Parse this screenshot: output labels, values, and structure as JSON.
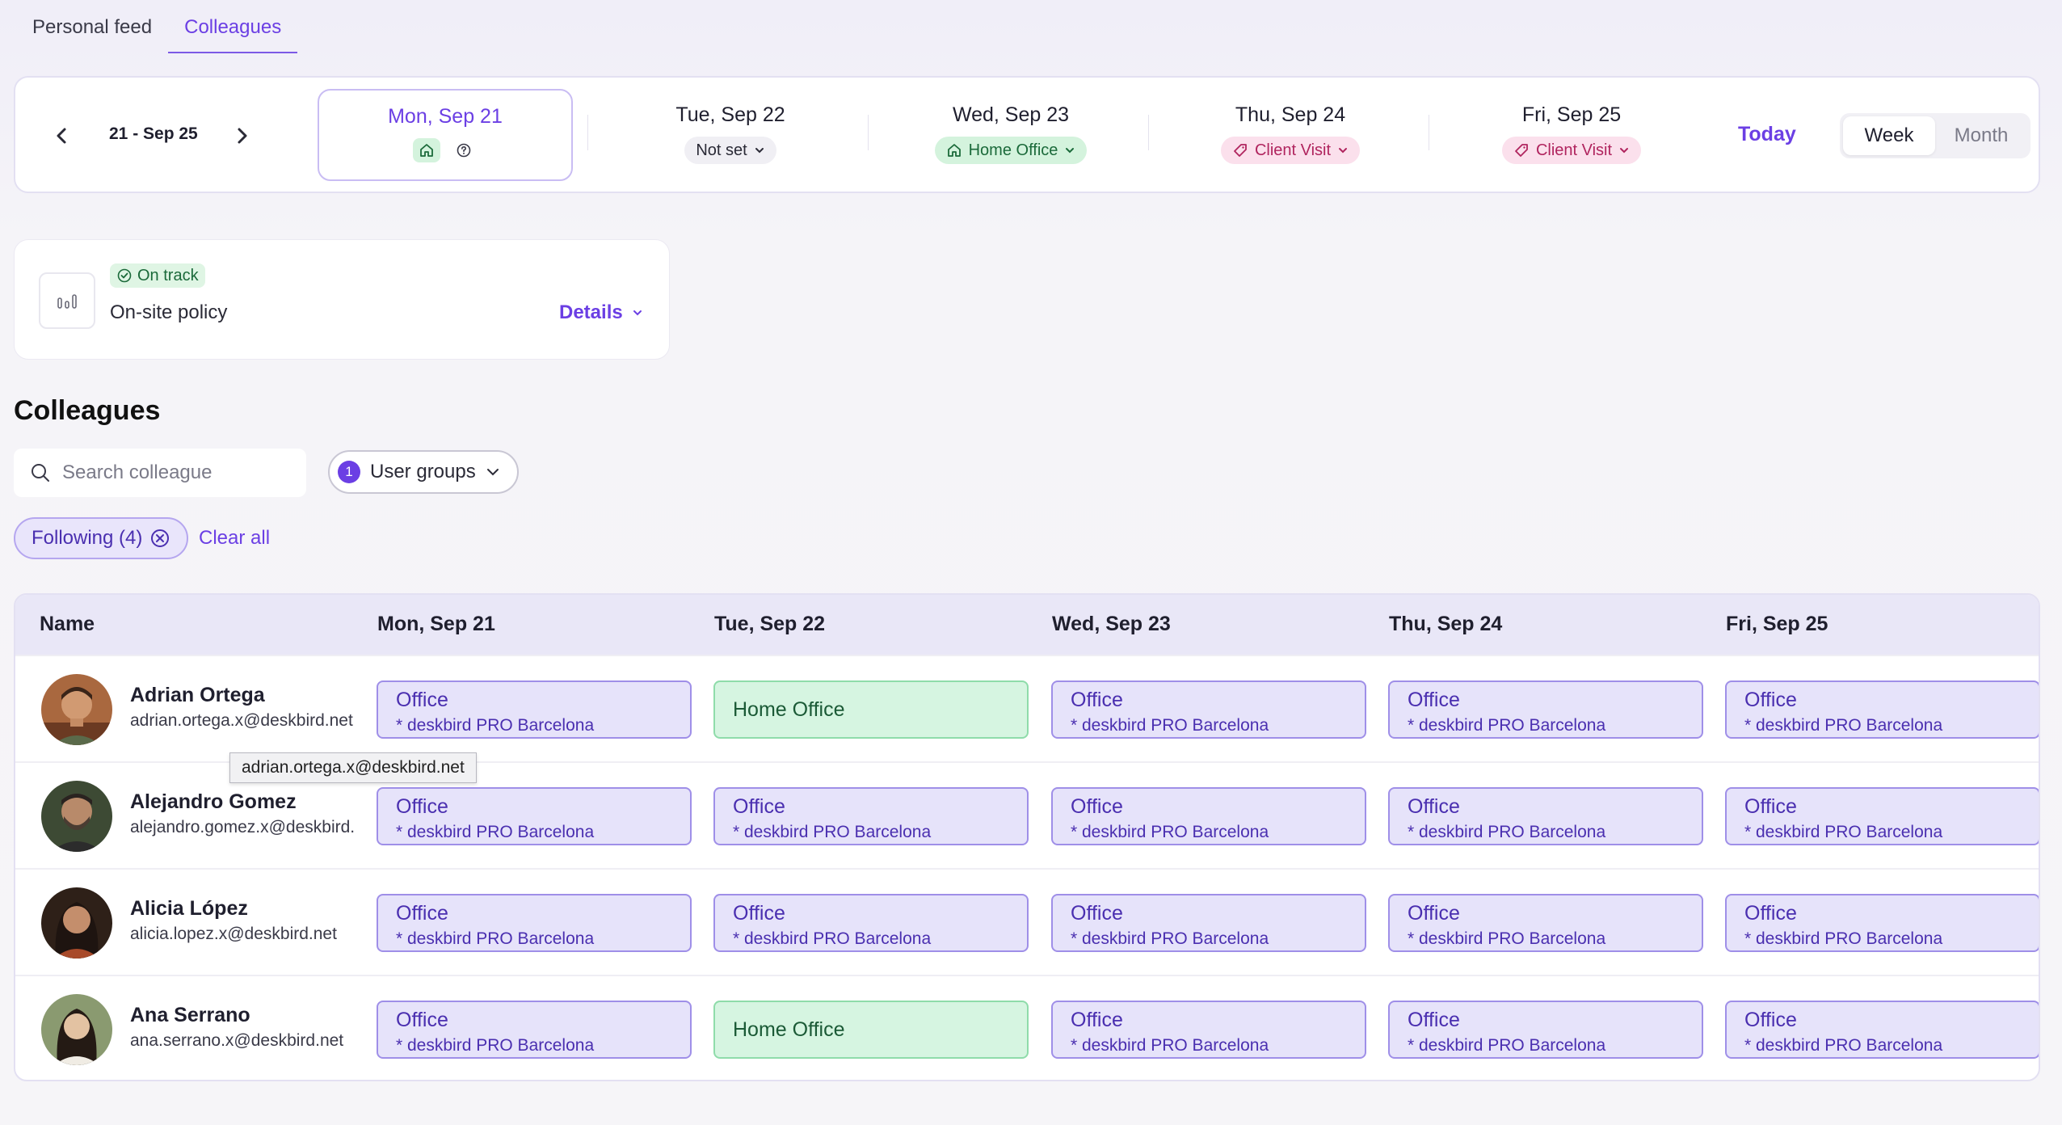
{
  "tabs": [
    {
      "label": "Personal feed",
      "active": false
    },
    {
      "label": "Colleagues",
      "active": true
    }
  ],
  "week_nav": {
    "range": "21 - Sep 25",
    "days": [
      {
        "title": "Mon, Sep 21",
        "status": "",
        "selected": true
      },
      {
        "title": "Tue, Sep 22",
        "status": "Not set",
        "type": "notset"
      },
      {
        "title": "Wed, Sep 23",
        "status": "Home Office",
        "type": "home"
      },
      {
        "title": "Thu, Sep 24",
        "status": "Client Visit",
        "type": "client"
      },
      {
        "title": "Fri, Sep 25",
        "status": "Client Visit",
        "type": "client"
      }
    ],
    "today_label": "Today",
    "view_options": [
      "Week",
      "Month"
    ],
    "active_view": "Week"
  },
  "policy": {
    "badge": "On track",
    "label": "On-site policy",
    "details_label": "Details"
  },
  "colleagues": {
    "title": "Colleagues",
    "search_placeholder": "Search colleague",
    "groups_label": "User groups",
    "groups_count": "1",
    "following_chip": "Following (4)",
    "clear_all": "Clear all",
    "table_headers": [
      "Name",
      "Mon, Sep 21",
      "Tue, Sep 22",
      "Wed, Sep 23",
      "Thu, Sep 24",
      "Fri, Sep 25"
    ],
    "rows": [
      {
        "name": "Adrian Ortega",
        "email": "adrian.ortega.x@deskbird.net",
        "cells": [
          {
            "type": "office",
            "title": "Office",
            "sub": "* deskbird PRO Barcelona"
          },
          {
            "type": "home",
            "title": "Home Office",
            "sub": ""
          },
          {
            "type": "office",
            "title": "Office",
            "sub": "* deskbird PRO Barcelona"
          },
          {
            "type": "office",
            "title": "Office",
            "sub": "* deskbird PRO Barcelona"
          },
          {
            "type": "office",
            "title": "Office",
            "sub": "* deskbird PRO Barcelona"
          }
        ]
      },
      {
        "name": "Alejandro Gomez",
        "email": "alejandro.gomez.x@deskbird.",
        "cells": [
          {
            "type": "office",
            "title": "Office",
            "sub": "* deskbird PRO Barcelona"
          },
          {
            "type": "office",
            "title": "Office",
            "sub": "* deskbird PRO Barcelona"
          },
          {
            "type": "office",
            "title": "Office",
            "sub": "* deskbird PRO Barcelona"
          },
          {
            "type": "office",
            "title": "Office",
            "sub": "* deskbird PRO Barcelona"
          },
          {
            "type": "office",
            "title": "Office",
            "sub": "* deskbird PRO Barcelona"
          }
        ]
      },
      {
        "name": "Alicia López",
        "email": "alicia.lopez.x@deskbird.net",
        "cells": [
          {
            "type": "office",
            "title": "Office",
            "sub": "* deskbird PRO Barcelona"
          },
          {
            "type": "office",
            "title": "Office",
            "sub": "* deskbird PRO Barcelona"
          },
          {
            "type": "office",
            "title": "Office",
            "sub": "* deskbird PRO Barcelona"
          },
          {
            "type": "office",
            "title": "Office",
            "sub": "* deskbird PRO Barcelona"
          },
          {
            "type": "office",
            "title": "Office",
            "sub": "* deskbird PRO Barcelona"
          }
        ]
      },
      {
        "name": "Ana Serrano",
        "email": "ana.serrano.x@deskbird.net",
        "cells": [
          {
            "type": "office",
            "title": "Office",
            "sub": "* deskbird PRO Barcelona"
          },
          {
            "type": "home",
            "title": "Home Office",
            "sub": ""
          },
          {
            "type": "office",
            "title": "Office",
            "sub": "* deskbird PRO Barcelona"
          },
          {
            "type": "office",
            "title": "Office",
            "sub": "* deskbird PRO Barcelona"
          },
          {
            "type": "office",
            "title": "Office",
            "sub": "* deskbird PRO Barcelona"
          }
        ]
      }
    ],
    "tooltip": "adrian.ortega.x@deskbird.net"
  },
  "colors": {
    "accent": "#6b3fe4",
    "office_bg": "#e6e3fa",
    "home_bg": "#d6f5e1",
    "client_bg": "#fbe0ec"
  }
}
